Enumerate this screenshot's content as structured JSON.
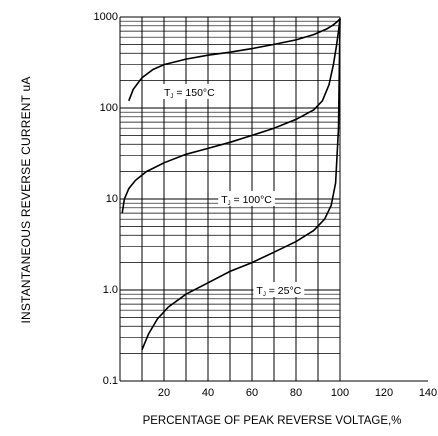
{
  "chart_data": {
    "type": "line",
    "title": "",
    "xlabel": "PERCENTAGE OF PEAK REVERSE VOLTAGE,%",
    "ylabel": "INSTANTANEOUS REVERSE CURRENT uA",
    "xlim": [
      0,
      140
    ],
    "ylim": [
      0.1,
      1000
    ],
    "y_scale": "log",
    "grid": true,
    "x_ticks": [
      "20",
      "40",
      "60",
      "80",
      "100",
      "120",
      "140"
    ],
    "y_ticks": [
      "0.1",
      "1.0",
      "10",
      "100",
      "1000"
    ],
    "series": [
      {
        "name": "Tj = 150°C",
        "label_main": "T",
        "label_sub": "J",
        "label_rest": " = 150°C",
        "label_at": [
          20,
          150
        ],
        "x": [
          4,
          6,
          10,
          15,
          20,
          30,
          40,
          50,
          60,
          70,
          80,
          88,
          94,
          97,
          99,
          100
        ],
        "y": [
          120,
          160,
          215,
          265,
          300,
          345,
          380,
          410,
          450,
          500,
          560,
          640,
          740,
          820,
          900,
          960
        ]
      },
      {
        "name": "Tj = 100°C",
        "label_main": "T",
        "label_sub": "J",
        "label_rest": " = 100°C",
        "label_at": [
          46,
          10
        ],
        "x": [
          1,
          2,
          4,
          7,
          12,
          20,
          30,
          40,
          50,
          60,
          70,
          80,
          88,
          92,
          95,
          97,
          98.5,
          99.3,
          100
        ],
        "y": [
          7,
          10,
          13,
          16,
          20,
          25,
          31,
          36,
          42,
          50,
          60,
          75,
          95,
          120,
          180,
          300,
          500,
          700,
          960
        ]
      },
      {
        "name": "Tj = 25°C",
        "label_main": "T",
        "label_sub": "J",
        "label_rest": " = 25°C",
        "label_at": [
          62,
          1.0
        ],
        "x": [
          10,
          13,
          17,
          22,
          30,
          40,
          50,
          60,
          70,
          80,
          88,
          93,
          96,
          98,
          99.3,
          100
        ],
        "y": [
          0.22,
          0.33,
          0.48,
          0.65,
          0.9,
          1.2,
          1.6,
          2.0,
          2.6,
          3.4,
          4.5,
          6.0,
          8.5,
          15,
          60,
          960
        ]
      }
    ]
  }
}
